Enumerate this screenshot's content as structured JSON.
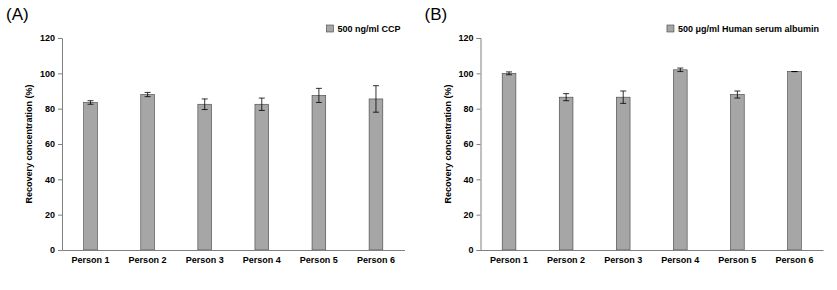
{
  "chart_data": [
    {
      "type": "bar",
      "title": "(A)",
      "y_label": "Recovery concentration (%)",
      "categories": [
        "Person 1",
        "Person 2",
        "Person 3",
        "Person 4",
        "Person 5",
        "Person 6"
      ],
      "series": [
        {
          "name": "500 ng/ml CCP",
          "color": "#a6a6a6",
          "values": [
            83.5,
            88,
            82.5,
            82.5,
            87.5,
            85.5
          ],
          "errors": [
            1,
            1.2,
            3,
            3.5,
            4,
            7.5
          ]
        }
      ],
      "ylim": [
        0,
        120
      ],
      "yticks": [
        0,
        20,
        40,
        60,
        80,
        100,
        120
      ],
      "grid": false,
      "legend": "upper right"
    },
    {
      "type": "bar",
      "title": "(B)",
      "y_label": "Recovery concentration (%)",
      "categories": [
        "Person 1",
        "Person 2",
        "Person 3",
        "Person 4",
        "Person 5",
        "Person 6"
      ],
      "series": [
        {
          "name": "500 μg/ml Human serum albumin",
          "color": "#a6a6a6",
          "values": [
            100,
            86.5,
            86.5,
            102,
            88,
            101
          ],
          "errors": [
            0.8,
            2,
            3.5,
            1,
            2,
            0
          ]
        }
      ],
      "ylim": [
        0,
        120
      ],
      "yticks": [
        0,
        20,
        40,
        60,
        80,
        100,
        120
      ],
      "grid": false,
      "legend": "upper right"
    }
  ]
}
